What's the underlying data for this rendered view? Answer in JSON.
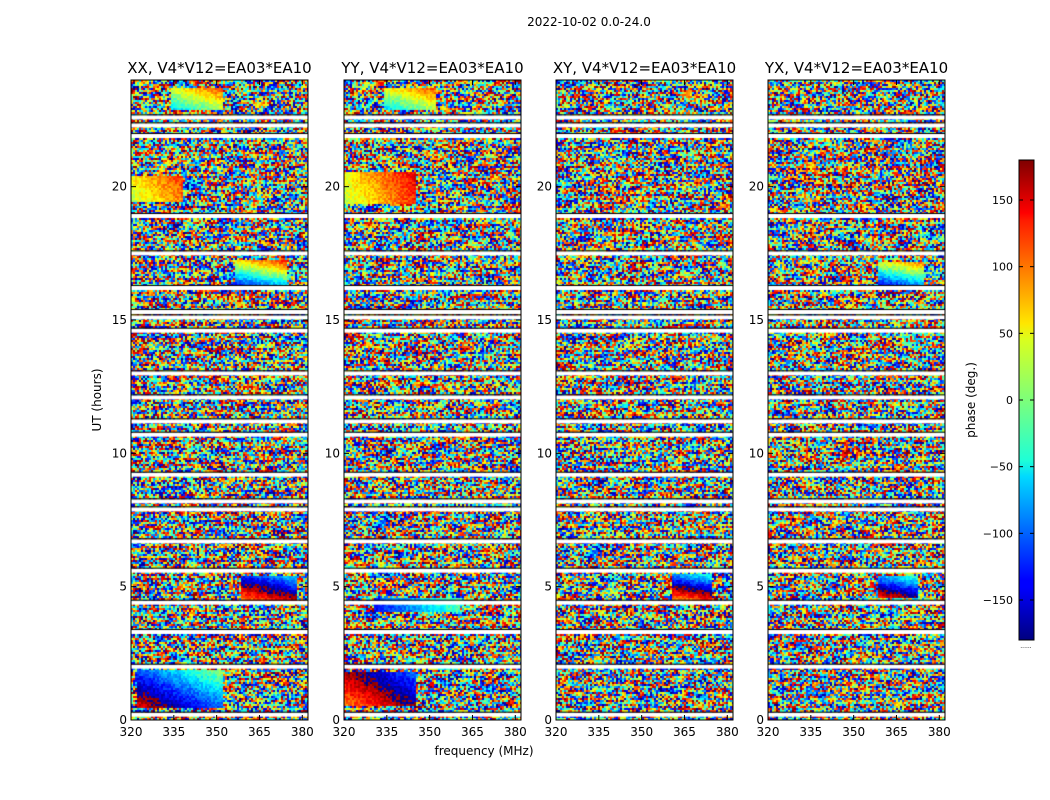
{
  "figure": {
    "suptitle": "2022-10-02 0.0-24.0",
    "xlabel": "frequency (MHz)",
    "ylabel": "UT (hours)",
    "colorbar_label": "phase (deg.)",
    "colorbar_ticks": [
      "150",
      "100",
      "50",
      "0",
      "−50",
      "−100",
      "−150"
    ],
    "colorbar_footer": "......"
  },
  "chart_data": [
    {
      "type": "heatmap",
      "title": "XX, V4*V12=EA03*EA10",
      "xlabel": "frequency (MHz)",
      "ylabel": "UT (hours)",
      "xlim": [
        320,
        382
      ],
      "ylim": [
        0,
        24
      ],
      "xticks": [
        "320",
        "335",
        "350",
        "365",
        "380"
      ],
      "xtick_values": [
        320,
        335,
        350,
        365,
        380
      ],
      "yticks": [
        "0",
        "5",
        "10",
        "15",
        "20"
      ],
      "ytick_values": [
        0,
        5,
        10,
        15,
        20
      ],
      "clim": [
        -180,
        180
      ],
      "colormap": "jet",
      "gaps_hours": [
        0.2,
        2.0,
        3.3,
        4.4,
        5.6,
        6.7,
        7.9,
        8.2,
        9.2,
        10.7,
        11.2,
        12.1,
        13.0,
        14.6,
        15.1,
        15.3,
        16.2,
        17.5,
        18.9,
        21.9,
        22.3,
        22.6
      ],
      "features": [
        {
          "t0": 0.5,
          "t1": 1.9,
          "f0": 322,
          "f1": 352,
          "phase_start": -40,
          "slope": 80
        },
        {
          "t0": 4.4,
          "t1": 5.4,
          "f0": 358,
          "f1": 378,
          "phase_start": -120,
          "slope": 160
        },
        {
          "t0": 16.2,
          "t1": 17.3,
          "f0": 356,
          "f1": 374,
          "phase_start": 20,
          "slope": 200
        },
        {
          "t0": 19.5,
          "t1": 20.4,
          "f0": 320,
          "f1": 338,
          "phase_start": -160,
          "slope": 30
        },
        {
          "t0": 22.9,
          "t1": 23.7,
          "f0": 334,
          "f1": 352,
          "phase_start": 120,
          "slope": 120
        }
      ]
    },
    {
      "type": "heatmap",
      "title": "YY, V4*V12=EA03*EA10",
      "xlim": [
        320,
        382
      ],
      "ylim": [
        0,
        24
      ],
      "xticks": [
        "320",
        "335",
        "350",
        "365",
        "380"
      ],
      "xtick_values": [
        320,
        335,
        350,
        365,
        380
      ],
      "yticks": [
        "0",
        "5",
        "10",
        "15",
        "20"
      ],
      "ytick_values": [
        0,
        5,
        10,
        15,
        20
      ],
      "clim": [
        -180,
        180
      ],
      "colormap": "jet",
      "gaps_hours": [
        0.2,
        2.0,
        3.3,
        4.4,
        5.6,
        6.7,
        7.9,
        8.2,
        9.2,
        10.7,
        11.2,
        12.1,
        13.0,
        14.6,
        15.1,
        15.3,
        16.2,
        17.5,
        18.9,
        21.9,
        22.3,
        22.6
      ],
      "features": [
        {
          "t0": 0.6,
          "t1": 1.8,
          "f0": 320,
          "f1": 345,
          "phase_start": -90,
          "slope": 60
        },
        {
          "t0": 4.1,
          "t1": 4.6,
          "f0": 330,
          "f1": 360,
          "phase_start": 40,
          "slope": 30
        },
        {
          "t0": 19.4,
          "t1": 20.6,
          "f0": 320,
          "f1": 345,
          "phase_start": -160,
          "slope": 20
        },
        {
          "t0": 22.9,
          "t1": 23.7,
          "f0": 334,
          "f1": 352,
          "phase_start": 120,
          "slope": 120
        }
      ]
    },
    {
      "type": "heatmap",
      "title": "XY, V4*V12=EA03*EA10",
      "xlim": [
        320,
        382
      ],
      "ylim": [
        0,
        24
      ],
      "xticks": [
        "320",
        "335",
        "350",
        "365",
        "380"
      ],
      "xtick_values": [
        320,
        335,
        350,
        365,
        380
      ],
      "yticks": [
        "0",
        "5",
        "10",
        "15",
        "20"
      ],
      "ytick_values": [
        0,
        5,
        10,
        15,
        20
      ],
      "clim": [
        -180,
        180
      ],
      "colormap": "jet",
      "gaps_hours": [
        0.2,
        2.0,
        3.3,
        4.4,
        5.6,
        6.7,
        7.9,
        8.2,
        9.2,
        10.7,
        11.2,
        12.1,
        13.0,
        14.6,
        15.1,
        15.3,
        16.2,
        17.5,
        18.9,
        21.9,
        22.3,
        22.6
      ],
      "features": [
        {
          "t0": 4.5,
          "t1": 5.5,
          "f0": 360,
          "f1": 374,
          "phase_start": -120,
          "slope": 220
        }
      ]
    },
    {
      "type": "heatmap",
      "title": "YX, V4*V12=EA03*EA10",
      "xlim": [
        320,
        382
      ],
      "ylim": [
        0,
        24
      ],
      "xticks": [
        "320",
        "335",
        "350",
        "365",
        "380"
      ],
      "xtick_values": [
        320,
        335,
        350,
        365,
        380
      ],
      "yticks": [
        "0",
        "5",
        "10",
        "15",
        "20"
      ],
      "ytick_values": [
        0,
        5,
        10,
        15,
        20
      ],
      "clim": [
        -180,
        180
      ],
      "colormap": "jet",
      "gaps_hours": [
        0.2,
        2.0,
        3.3,
        4.4,
        5.6,
        6.7,
        7.9,
        8.2,
        9.2,
        10.7,
        11.2,
        12.1,
        13.0,
        14.6,
        15.1,
        15.3,
        16.2,
        17.5,
        18.9,
        21.9,
        22.3,
        22.6
      ],
      "features": [
        {
          "t0": 4.6,
          "t1": 5.4,
          "f0": 358,
          "f1": 372,
          "phase_start": -60,
          "slope": 200
        },
        {
          "t0": 16.3,
          "t1": 17.2,
          "f0": 358,
          "f1": 374,
          "phase_start": 30,
          "slope": 200
        }
      ]
    }
  ]
}
